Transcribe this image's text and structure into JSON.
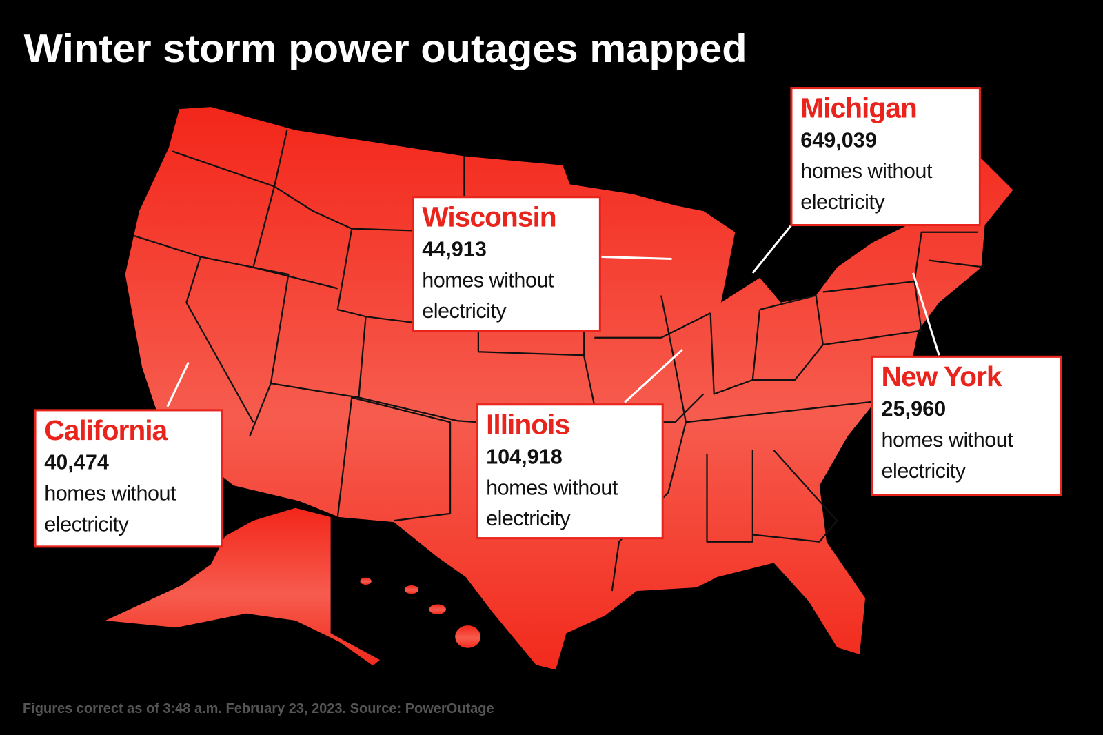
{
  "title": "Winter storm power outages mapped",
  "callouts": [
    {
      "state": "Wisconsin",
      "count": "44,913",
      "caption": [
        "homes without",
        "electricity"
      ]
    },
    {
      "state": "Michigan",
      "count": "649,039",
      "caption": [
        "homes without",
        "electricity"
      ]
    },
    {
      "state": "California",
      "count": "40,474",
      "caption": [
        "homes without",
        "electricity"
      ]
    },
    {
      "state": "Illinois",
      "count": "104,918",
      "caption": [
        "homes without",
        "electricity"
      ]
    },
    {
      "state": "New York",
      "count": "25,960",
      "caption": [
        "homes without",
        "electricity"
      ]
    }
  ],
  "footnote": "Figures correct as of 3:48 a.m. February 23, 2023. Source: PowerOutage"
}
